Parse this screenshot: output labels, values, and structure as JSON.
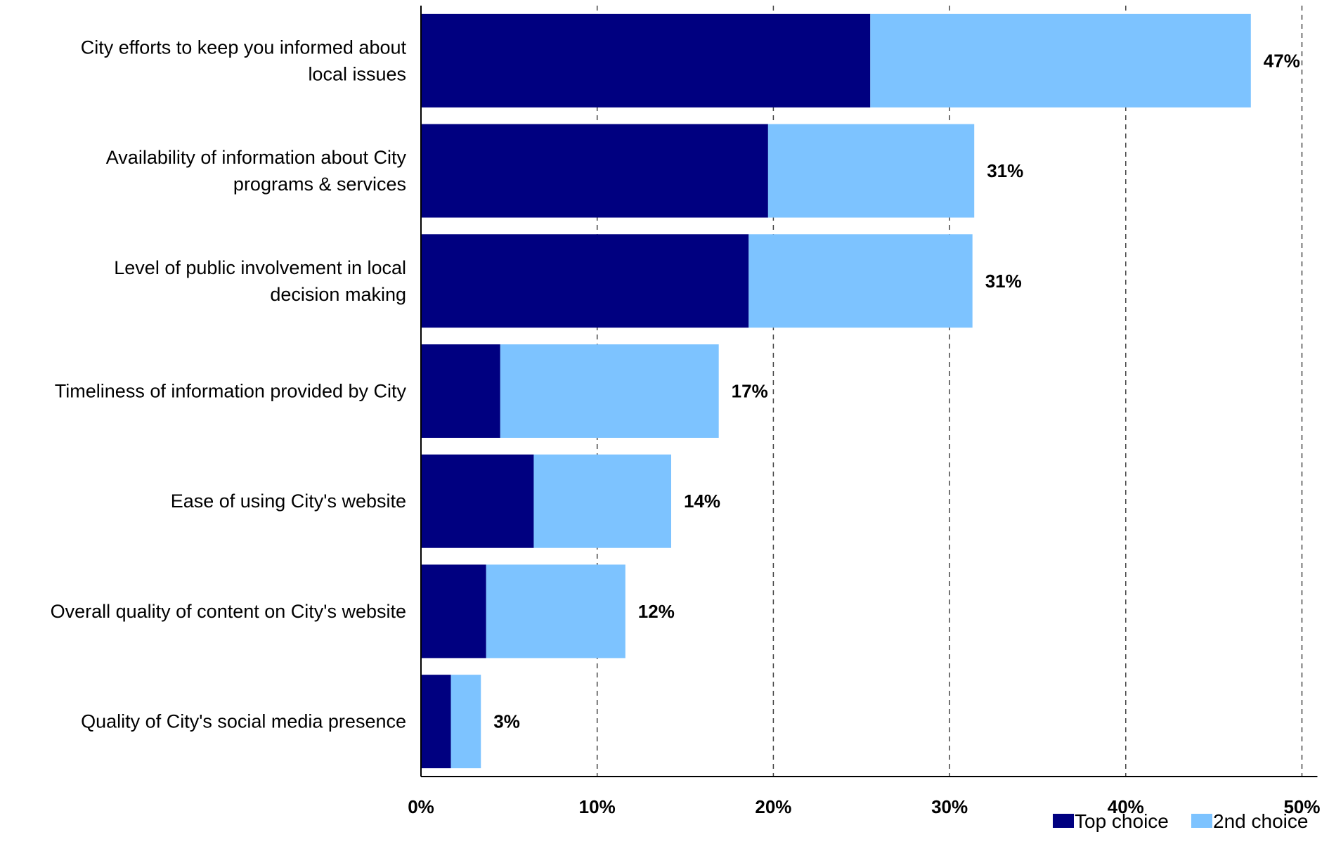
{
  "chart_data": {
    "type": "bar",
    "orientation": "horizontal",
    "stacked": true,
    "categories": [
      [
        "City efforts to keep you informed about",
        "local issues"
      ],
      [
        "Availability of information about City",
        "programs & services"
      ],
      [
        "Level of public involvement in local",
        "decision making"
      ],
      [
        "Timeliness of information provided by City"
      ],
      [
        "Ease of using City's website"
      ],
      [
        "Overall quality of content on City's website"
      ],
      [
        "Quality of City's social media presence"
      ]
    ],
    "series": [
      {
        "name": "Top choice",
        "color": "#000080",
        "values": [
          25.5,
          19.7,
          18.6,
          4.5,
          6.4,
          3.7,
          1.7
        ]
      },
      {
        "name": "2nd choice",
        "color": "#7DC3FF",
        "values": [
          21.6,
          11.7,
          12.7,
          12.4,
          7.8,
          7.9,
          1.7
        ]
      }
    ],
    "totals": [
      47.1,
      31.4,
      31.3,
      16.9,
      14.2,
      11.6,
      3.4
    ],
    "data_labels": [
      "47%",
      "31%",
      "31%",
      "17%",
      "14%",
      "12%",
      "3%"
    ],
    "xlim": [
      0,
      50
    ],
    "x_ticks": [
      0,
      10,
      20,
      30,
      40,
      50
    ],
    "x_tick_labels": [
      "0%",
      "10%",
      "20%",
      "30%",
      "40%",
      "50%"
    ],
    "grid": "vertical dashed",
    "legend_position": "bottom-right",
    "title": "",
    "xlabel": "",
    "ylabel": ""
  }
}
